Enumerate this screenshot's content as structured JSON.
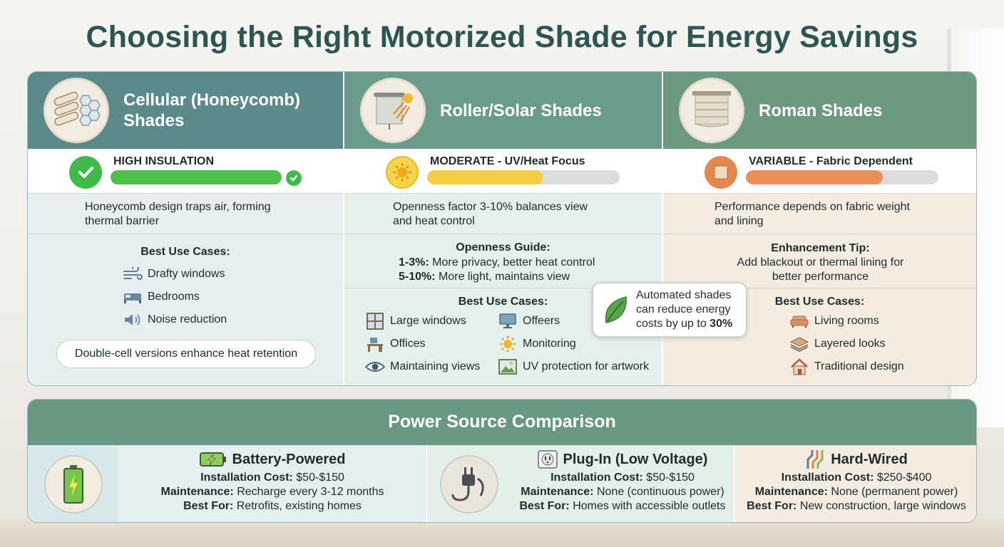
{
  "title": "Choosing the Right Motorized Shade for Energy Savings",
  "columns": [
    {
      "name": "Cellular (Honeycomb) Shades",
      "name_line1": "Cellular (Honeycomb)",
      "name_line2": "Shades",
      "icon": "honeycomb-icon",
      "rating_label": "HIGH INSULATION",
      "rating_fraction": 1.0,
      "rating_color": "#4cc14a",
      "rating_icon": "check-icon",
      "description_line1": "Honeycomb design traps air, forming",
      "description_line2": "thermal barrier",
      "use_cases_title": "Best Use Cases:",
      "use_cases": [
        {
          "icon": "wind-icon",
          "label": "Drafty windows"
        },
        {
          "icon": "bed-icon",
          "label": "Bedrooms"
        },
        {
          "icon": "speaker-icon",
          "label": "Noise reduction"
        }
      ],
      "note": "Double-cell versions enhance heat retention"
    },
    {
      "name": "Roller/Solar Shades",
      "icon": "roller-shade-icon",
      "rating_label": "MODERATE - UV/Heat Focus",
      "rating_fraction": 0.6,
      "rating_color": "#f2cf45",
      "rating_icon": "sun-icon",
      "description_line1": "Openness factor 3-10% balances view",
      "description_line2": "and heat control",
      "guide_title": "Openness Guide:",
      "guide": [
        {
          "key": "1-3%:",
          "text": "More privacy, better heat control"
        },
        {
          "key": "5-10%:",
          "text": "More light, maintains view"
        }
      ],
      "use_cases_title": "Best Use Cases:",
      "use_cases_left": [
        {
          "icon": "window-icon",
          "label": "Large windows"
        },
        {
          "icon": "desk-icon",
          "label": "Offices"
        },
        {
          "icon": "eye-icon",
          "label": "Maintaining views"
        }
      ],
      "use_cases_right": [
        {
          "icon": "monitor-icon",
          "label": "Offeers"
        },
        {
          "icon": "sun-icon",
          "label": "Monitoring"
        },
        {
          "icon": "picture-icon",
          "label": "UV protection for artwork"
        }
      ]
    },
    {
      "name": "Roman Shades",
      "icon": "roman-shade-icon",
      "rating_label": "VARIABLE - Fabric Dependent",
      "rating_fraction": 0.71,
      "rating_color": "#e98f58",
      "rating_icon": "fabric-swatch-icon",
      "description_line1": "Performance depends on fabric weight",
      "description_line2": "and lining",
      "tip_title": "Enhancement Tip:",
      "tip_line1": "Add blackout or thermal lining for",
      "tip_line2": "better performance",
      "use_cases_title": "Best Use Cases:",
      "use_cases": [
        {
          "icon": "sofa-icon",
          "label": "Living rooms"
        },
        {
          "icon": "layers-icon",
          "label": "Layered looks"
        },
        {
          "icon": "house-icon",
          "label": "Traditional design"
        }
      ]
    }
  ],
  "callout": {
    "line1": "Automated shades",
    "line2": "can reduce energy",
    "line3_prefix": "costs by up to ",
    "line3_value": "30%",
    "icon": "leaf-icon"
  },
  "power": {
    "title": "Power Source Comparison",
    "options": [
      {
        "name": "Battery-Powered",
        "icon": "battery-icon",
        "cost_label": "Installation Cost:",
        "cost": "$50-$150",
        "maint_label": "Maintenance:",
        "maint": "Recharge every 3-12 months",
        "best_label": "Best For:",
        "best": "Retrofits, existing homes"
      },
      {
        "name": "Plug-In (Low Voltage)",
        "icon": "outlet-icon",
        "cost_label": "Installation Cost:",
        "cost": "$50-$150",
        "maint_label": "Maintenance:",
        "maint": "None (continuous power)",
        "best_label": "Best For:",
        "best": "Homes with accessible outlets"
      },
      {
        "name": "Hard-Wired",
        "icon": "wires-icon",
        "cost_label": "Installation Cost:",
        "cost": "$250-$400",
        "maint_label": "Maintenance:",
        "maint": "None (permanent power)",
        "best_label": "Best For:",
        "best": "New construction, large windows"
      }
    ]
  }
}
